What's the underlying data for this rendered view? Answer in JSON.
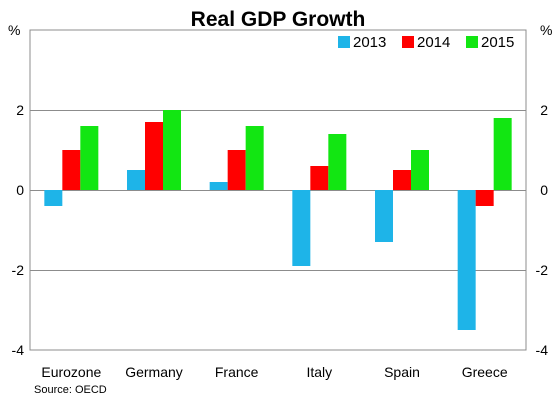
{
  "chart_data": {
    "type": "bar",
    "title": "Real GDP Growth",
    "ylabel_left": "%",
    "ylabel_right": "%",
    "categories": [
      "Eurozone",
      "Germany",
      "France",
      "Italy",
      "Spain",
      "Greece"
    ],
    "series": [
      {
        "name": "2013",
        "color": "#1EB4E8",
        "values": [
          -0.4,
          0.5,
          0.2,
          -1.9,
          -1.3,
          -3.5
        ]
      },
      {
        "name": "2014",
        "color": "#FF0000",
        "values": [
          1.0,
          1.7,
          1.0,
          0.6,
          0.5,
          -0.4
        ]
      },
      {
        "name": "2015",
        "color": "#12E612",
        "values": [
          1.6,
          2.0,
          1.6,
          1.4,
          1.0,
          1.8
        ]
      }
    ],
    "ylim": [
      -4,
      4
    ],
    "yticks": [
      "-4",
      "-2",
      "0",
      "2"
    ],
    "legend_position": "top-right",
    "grid": "horizontal",
    "source": "Source: OECD"
  }
}
